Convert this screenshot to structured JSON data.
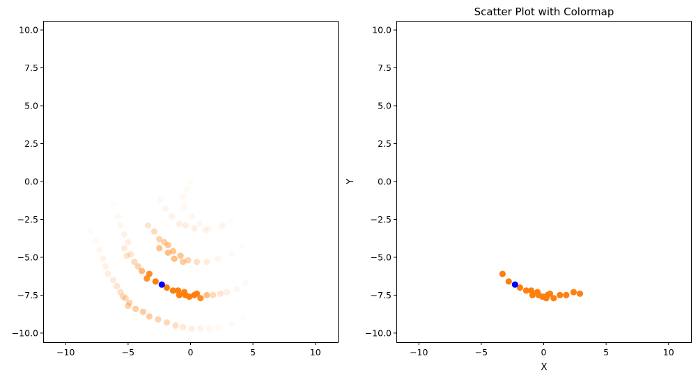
{
  "chart_data": [
    {
      "type": "scatter",
      "title": "",
      "xlabel": "",
      "ylabel": "",
      "xlim": [
        -11.8,
        11.8
      ],
      "ylim": [
        -10.6,
        10.6
      ],
      "xticks": [
        -10,
        -5,
        0,
        5,
        10
      ],
      "yticks": [
        -10.0,
        -7.5,
        -5.0,
        -2.5,
        0.0,
        2.5,
        5.0,
        7.5,
        10.0
      ],
      "xtick_labels": [
        "−10",
        "−5",
        "0",
        "5",
        "10"
      ],
      "ytick_labels": [
        "−10.0",
        "−7.5",
        "−5.0",
        "−2.5",
        "0.0",
        "2.5",
        "5.0",
        "7.5",
        "10.0"
      ],
      "series": [
        {
          "color": "#ff7f0e",
          "values": [
            {
              "x": 0.0,
              "y": 0.0,
              "a": 0.03
            },
            {
              "x": -0.3,
              "y": -0.5,
              "a": 0.04
            },
            {
              "x": -0.6,
              "y": -1.0,
              "a": 0.05
            },
            {
              "x": -0.5,
              "y": -1.7,
              "a": 0.06
            },
            {
              "x": 0.1,
              "y": -2.3,
              "a": 0.07
            },
            {
              "x": 0.7,
              "y": -2.8,
              "a": 0.06
            },
            {
              "x": 1.5,
              "y": -3.1,
              "a": 0.05
            },
            {
              "x": 2.4,
              "y": -3.0,
              "a": 0.04
            },
            {
              "x": 3.2,
              "y": -2.6,
              "a": 0.03
            },
            {
              "x": -2.4,
              "y": -1.2,
              "a": 0.06
            },
            {
              "x": -2.0,
              "y": -1.8,
              "a": 0.08
            },
            {
              "x": -1.5,
              "y": -2.3,
              "a": 0.1
            },
            {
              "x": -0.9,
              "y": -2.8,
              "a": 0.12
            },
            {
              "x": -0.4,
              "y": -2.9,
              "a": 0.14
            },
            {
              "x": 0.3,
              "y": -3.1,
              "a": 0.12
            },
            {
              "x": 1.2,
              "y": -3.2,
              "a": 0.09
            },
            {
              "x": 2.6,
              "y": -2.9,
              "a": 0.06
            },
            {
              "x": -3.4,
              "y": -2.9,
              "a": 0.2
            },
            {
              "x": -2.9,
              "y": -3.3,
              "a": 0.28
            },
            {
              "x": -2.5,
              "y": -3.8,
              "a": 0.34
            },
            {
              "x": -2.1,
              "y": -4.0,
              "a": 0.38
            },
            {
              "x": -1.8,
              "y": -4.2,
              "a": 0.42
            },
            {
              "x": -1.4,
              "y": -4.6,
              "a": 0.45
            },
            {
              "x": -1.3,
              "y": -5.1,
              "a": 0.5
            },
            {
              "x": -2.5,
              "y": -4.4,
              "a": 0.48
            },
            {
              "x": -1.8,
              "y": -4.7,
              "a": 0.5
            },
            {
              "x": -0.8,
              "y": -4.9,
              "a": 0.45
            },
            {
              "x": -0.6,
              "y": -5.3,
              "a": 0.4
            },
            {
              "x": -0.2,
              "y": -5.2,
              "a": 0.35
            },
            {
              "x": 0.5,
              "y": -5.3,
              "a": 0.25
            },
            {
              "x": 1.3,
              "y": -5.3,
              "a": 0.15
            },
            {
              "x": 2.2,
              "y": -5.1,
              "a": 0.08
            },
            {
              "x": 3.3,
              "y": -4.8,
              "a": 0.05
            },
            {
              "x": 4.1,
              "y": -4.3,
              "a": 0.03
            },
            {
              "x": -6.2,
              "y": -1.5,
              "a": 0.03
            },
            {
              "x": -5.8,
              "y": -2.3,
              "a": 0.05
            },
            {
              "x": -5.6,
              "y": -2.9,
              "a": 0.07
            },
            {
              "x": -5.3,
              "y": -3.5,
              "a": 0.1
            },
            {
              "x": -5.0,
              "y": -4.0,
              "a": 0.13
            },
            {
              "x": -5.3,
              "y": -4.4,
              "a": 0.16
            },
            {
              "x": -4.8,
              "y": -4.8,
              "a": 0.2
            },
            {
              "x": -5.1,
              "y": -4.9,
              "a": 0.22
            },
            {
              "x": -4.5,
              "y": -5.3,
              "a": 0.28
            },
            {
              "x": -4.2,
              "y": -5.6,
              "a": 0.35
            },
            {
              "x": -3.9,
              "y": -5.9,
              "a": 0.55
            },
            {
              "x": -3.3,
              "y": -6.1,
              "a": 0.9
            },
            {
              "x": -3.5,
              "y": -6.4,
              "a": 0.85
            },
            {
              "x": -2.8,
              "y": -6.6,
              "a": 1.0
            },
            {
              "x": -1.9,
              "y": -7.0,
              "a": 1.0
            },
            {
              "x": -1.4,
              "y": -7.2,
              "a": 1.0
            },
            {
              "x": -1.0,
              "y": -7.2,
              "a": 1.0
            },
            {
              "x": -0.9,
              "y": -7.5,
              "a": 1.0
            },
            {
              "x": -0.5,
              "y": -7.3,
              "a": 1.0
            },
            {
              "x": -0.4,
              "y": -7.5,
              "a": 1.0
            },
            {
              "x": -0.1,
              "y": -7.6,
              "a": 1.0
            },
            {
              "x": 0.3,
              "y": -7.5,
              "a": 1.0
            },
            {
              "x": 0.5,
              "y": -7.4,
              "a": 1.0
            },
            {
              "x": 0.8,
              "y": -7.7,
              "a": 0.9
            },
            {
              "x": 1.3,
              "y": -7.5,
              "a": 0.5
            },
            {
              "x": 1.8,
              "y": -7.5,
              "a": 0.3
            },
            {
              "x": 2.4,
              "y": -7.4,
              "a": 0.2
            },
            {
              "x": 2.9,
              "y": -7.3,
              "a": 0.12
            },
            {
              "x": 3.7,
              "y": -7.1,
              "a": 0.07
            },
            {
              "x": 4.4,
              "y": -6.7,
              "a": 0.04
            },
            {
              "x": -8.0,
              "y": -3.3,
              "a": 0.03
            },
            {
              "x": -7.6,
              "y": -3.9,
              "a": 0.05
            },
            {
              "x": -7.3,
              "y": -4.5,
              "a": 0.07
            },
            {
              "x": -7.0,
              "y": -5.1,
              "a": 0.09
            },
            {
              "x": -6.8,
              "y": -5.6,
              "a": 0.11
            },
            {
              "x": -6.6,
              "y": -6.1,
              "a": 0.13
            },
            {
              "x": -6.2,
              "y": -6.5,
              "a": 0.16
            },
            {
              "x": -5.9,
              "y": -6.9,
              "a": 0.2
            },
            {
              "x": -5.6,
              "y": -7.3,
              "a": 0.24
            },
            {
              "x": -5.2,
              "y": -7.7,
              "a": 0.28
            },
            {
              "x": -5.4,
              "y": -7.6,
              "a": 0.28
            },
            {
              "x": -4.9,
              "y": -8.0,
              "a": 0.32
            },
            {
              "x": -5.0,
              "y": -8.2,
              "a": 0.35
            },
            {
              "x": -4.4,
              "y": -8.4,
              "a": 0.38
            },
            {
              "x": -3.8,
              "y": -8.6,
              "a": 0.4
            },
            {
              "x": -3.3,
              "y": -8.9,
              "a": 0.4
            },
            {
              "x": -2.6,
              "y": -9.1,
              "a": 0.35
            },
            {
              "x": -1.9,
              "y": -9.3,
              "a": 0.3
            },
            {
              "x": -1.2,
              "y": -9.5,
              "a": 0.25
            },
            {
              "x": -0.6,
              "y": -9.6,
              "a": 0.18
            },
            {
              "x": 0.1,
              "y": -9.7,
              "a": 0.12
            },
            {
              "x": 0.8,
              "y": -9.7,
              "a": 0.1
            },
            {
              "x": 1.5,
              "y": -9.7,
              "a": 0.07
            },
            {
              "x": 2.2,
              "y": -9.6,
              "a": 0.05
            },
            {
              "x": 3.3,
              "y": -9.4,
              "a": 0.04
            },
            {
              "x": 4.2,
              "y": -9.0,
              "a": 0.03
            }
          ]
        },
        {
          "color": "#0000ff",
          "values": [
            {
              "x": -2.3,
              "y": -6.8,
              "a": 1.0
            }
          ]
        }
      ]
    },
    {
      "type": "scatter",
      "title": "Scatter Plot with Colormap",
      "xlabel": "X",
      "ylabel": "Y",
      "xlim": [
        -11.8,
        11.8
      ],
      "ylim": [
        -10.6,
        10.6
      ],
      "xticks": [
        -10,
        -5,
        0,
        5,
        10
      ],
      "yticks": [
        -10.0,
        -7.5,
        -5.0,
        -2.5,
        0.0,
        2.5,
        5.0,
        7.5,
        10.0
      ],
      "xtick_labels": [
        "−10",
        "−5",
        "0",
        "5",
        "10"
      ],
      "ytick_labels": [
        "−10.0",
        "−7.5",
        "−5.0",
        "−2.5",
        "0.0",
        "2.5",
        "5.0",
        "7.5",
        "10.0"
      ],
      "series": [
        {
          "color": "#ff7f0e",
          "values": [
            {
              "x": -3.3,
              "y": -6.1,
              "a": 1.0
            },
            {
              "x": -2.8,
              "y": -6.6,
              "a": 1.0
            },
            {
              "x": -1.9,
              "y": -7.0,
              "a": 1.0
            },
            {
              "x": -1.4,
              "y": -7.2,
              "a": 1.0
            },
            {
              "x": -1.0,
              "y": -7.2,
              "a": 1.0
            },
            {
              "x": -0.9,
              "y": -7.5,
              "a": 1.0
            },
            {
              "x": -0.5,
              "y": -7.3,
              "a": 1.0
            },
            {
              "x": -0.4,
              "y": -7.5,
              "a": 1.0
            },
            {
              "x": -0.1,
              "y": -7.6,
              "a": 1.0
            },
            {
              "x": 0.3,
              "y": -7.5,
              "a": 1.0
            },
            {
              "x": 0.5,
              "y": -7.4,
              "a": 1.0
            },
            {
              "x": 0.8,
              "y": -7.7,
              "a": 1.0
            },
            {
              "x": 1.3,
              "y": -7.5,
              "a": 1.0
            },
            {
              "x": 1.8,
              "y": -7.5,
              "a": 1.0
            },
            {
              "x": 2.4,
              "y": -7.3,
              "a": 1.0
            },
            {
              "x": 2.9,
              "y": -7.4,
              "a": 1.0
            },
            {
              "x": 0.2,
              "y": -7.7,
              "a": 1.0
            }
          ]
        },
        {
          "color": "#0000ff",
          "values": [
            {
              "x": -2.3,
              "y": -6.8,
              "a": 1.0
            }
          ]
        }
      ]
    }
  ]
}
